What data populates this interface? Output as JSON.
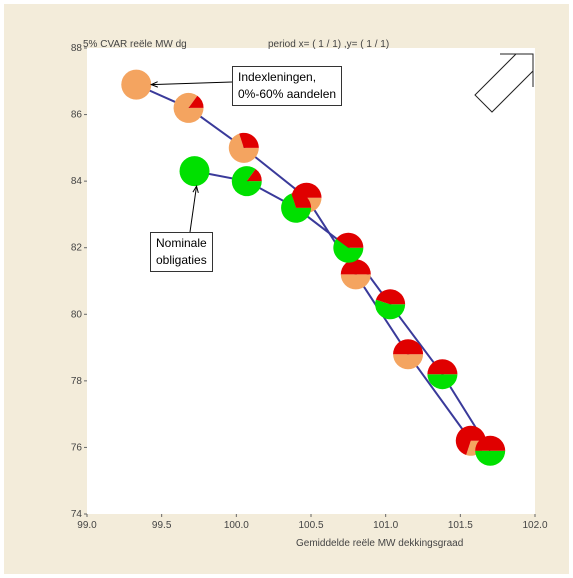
{
  "chart_data": {
    "type": "scatter",
    "title": "5% CVAR reële MW dg",
    "period_label": "period x= ( 1 / 1) ,y= ( 1 / 1)",
    "xlabel": "Gemiddelde reële MW dekkingsgraad",
    "ylabel": "",
    "xlim": [
      99.0,
      102.0
    ],
    "ylim": [
      74,
      88
    ],
    "x_ticks": [
      "99.0",
      "99.5",
      "100.0",
      "100.5",
      "101.0",
      "101.5",
      "102.0"
    ],
    "y_ticks": [
      "74",
      "76",
      "78",
      "80",
      "82",
      "84",
      "86",
      "88"
    ],
    "grid": false,
    "marker": "pie",
    "series": [
      {
        "name": "Indexleningen, 0%-60% aandelen",
        "color": "#f4a460",
        "points": [
          {
            "x": 99.33,
            "y": 86.9,
            "slices": [
              {
                "color": "#f4a460",
                "frac": 1.0
              }
            ]
          },
          {
            "x": 99.68,
            "y": 86.2,
            "slices": [
              {
                "color": "#f4a460",
                "frac": 0.85
              },
              {
                "color": "#e00000",
                "frac": 0.15
              }
            ]
          },
          {
            "x": 100.05,
            "y": 85.0,
            "slices": [
              {
                "color": "#f4a460",
                "frac": 0.7
              },
              {
                "color": "#e00000",
                "frac": 0.3
              }
            ]
          },
          {
            "x": 100.47,
            "y": 83.5,
            "slices": [
              {
                "color": "#f4a460",
                "frac": 0.5
              },
              {
                "color": "#e00000",
                "frac": 0.5
              }
            ]
          },
          {
            "x": 100.8,
            "y": 81.2,
            "slices": [
              {
                "color": "#f4a460",
                "frac": 0.5
              },
              {
                "color": "#e00000",
                "frac": 0.5
              }
            ]
          },
          {
            "x": 101.15,
            "y": 78.8,
            "slices": [
              {
                "color": "#f4a460",
                "frac": 0.5
              },
              {
                "color": "#e00000",
                "frac": 0.5
              }
            ]
          },
          {
            "x": 101.57,
            "y": 76.2,
            "slices": [
              {
                "color": "#f4a460",
                "frac": 0.3
              },
              {
                "color": "#e00000",
                "frac": 0.7
              }
            ]
          }
        ]
      },
      {
        "name": "Nominale obligaties",
        "color": "#00e000",
        "points": [
          {
            "x": 99.72,
            "y": 84.3,
            "slices": [
              {
                "color": "#00e000",
                "frac": 1.0
              }
            ]
          },
          {
            "x": 100.07,
            "y": 84.0,
            "slices": [
              {
                "color": "#00e000",
                "frac": 0.85
              },
              {
                "color": "#e00000",
                "frac": 0.15
              }
            ]
          },
          {
            "x": 100.4,
            "y": 83.2,
            "slices": [
              {
                "color": "#00e000",
                "frac": 0.7
              },
              {
                "color": "#e00000",
                "frac": 0.3
              }
            ]
          },
          {
            "x": 100.75,
            "y": 82.0,
            "slices": [
              {
                "color": "#00e000",
                "frac": 0.6
              },
              {
                "color": "#e00000",
                "frac": 0.4
              }
            ]
          },
          {
            "x": 101.03,
            "y": 80.3,
            "slices": [
              {
                "color": "#00e000",
                "frac": 0.55
              },
              {
                "color": "#e00000",
                "frac": 0.45
              }
            ]
          },
          {
            "x": 101.38,
            "y": 78.2,
            "slices": [
              {
                "color": "#00e000",
                "frac": 0.5
              },
              {
                "color": "#e00000",
                "frac": 0.5
              }
            ]
          },
          {
            "x": 101.7,
            "y": 75.9,
            "slices": [
              {
                "color": "#00e000",
                "frac": 0.5
              },
              {
                "color": "#e00000",
                "frac": 0.5
              }
            ]
          }
        ]
      }
    ],
    "annotations": [
      {
        "text": "Indexleningen,\n0%-60% aandelen",
        "target_series": 0,
        "target_point": 0
      },
      {
        "text": "Nominale\nobligaties",
        "target_series": 1,
        "target_point": 0
      }
    ],
    "colors": {
      "line": "#3a3a9a",
      "frame": "#f3ecda",
      "plot_bg": "#ffffff"
    }
  },
  "widgets": {
    "arrow_button": "arrow-up-right-icon"
  }
}
